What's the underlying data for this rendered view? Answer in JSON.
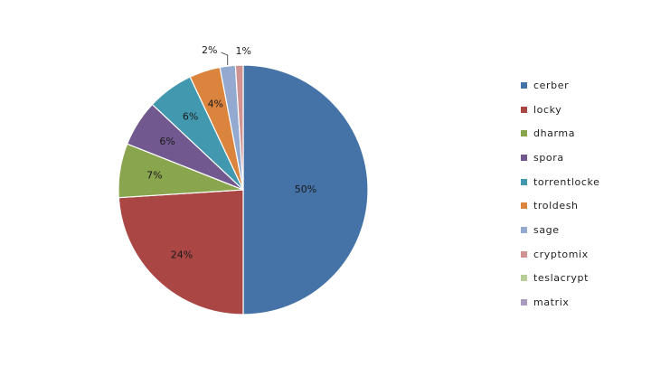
{
  "chart_data": {
    "type": "pie",
    "title": "",
    "legend_position": "right",
    "categories": [
      "cerber",
      "locky",
      "dharma",
      "spora",
      "torrentlocke",
      "troldesh",
      "sage",
      "cryptomix",
      "teslacrypt",
      "matrix"
    ],
    "values": [
      50,
      24,
      7,
      6,
      6,
      4,
      2,
      1,
      0,
      0
    ],
    "labels": [
      "50%",
      "24%",
      "7%",
      "6%",
      "6%",
      "4%",
      "2%",
      "1%",
      "",
      ""
    ],
    "colors": [
      "#4573A8",
      "#AA4644",
      "#89A54E",
      "#71588F",
      "#4198AF",
      "#DB843D",
      "#93A9CF",
      "#D19392",
      "#B9CD96",
      "#A99BBD"
    ]
  }
}
